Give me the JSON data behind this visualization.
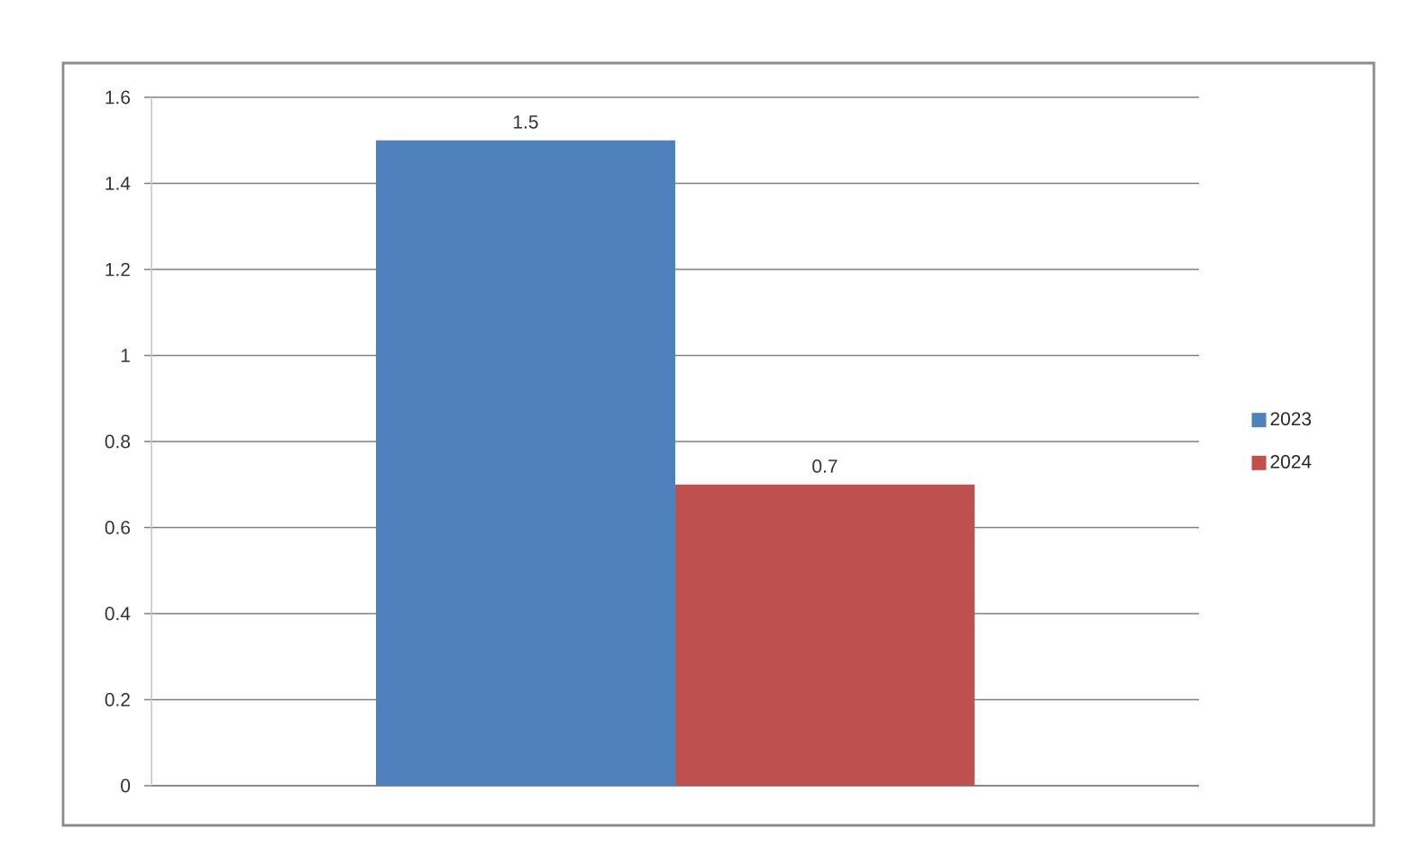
{
  "chart_data": {
    "type": "bar",
    "categories": [
      null
    ],
    "series": [
      {
        "name": "2023",
        "color": "#4f81bd",
        "values": [
          1.5
        ]
      },
      {
        "name": "2024",
        "color": "#c0504d",
        "values": [
          0.7
        ]
      }
    ],
    "ylim": [
      0,
      1.6
    ],
    "yticks": [
      0,
      0.2,
      0.4,
      0.6,
      0.8,
      1,
      1.2,
      1.4,
      1.6
    ],
    "grid": "y",
    "legend": "right",
    "data_labels": true
  }
}
